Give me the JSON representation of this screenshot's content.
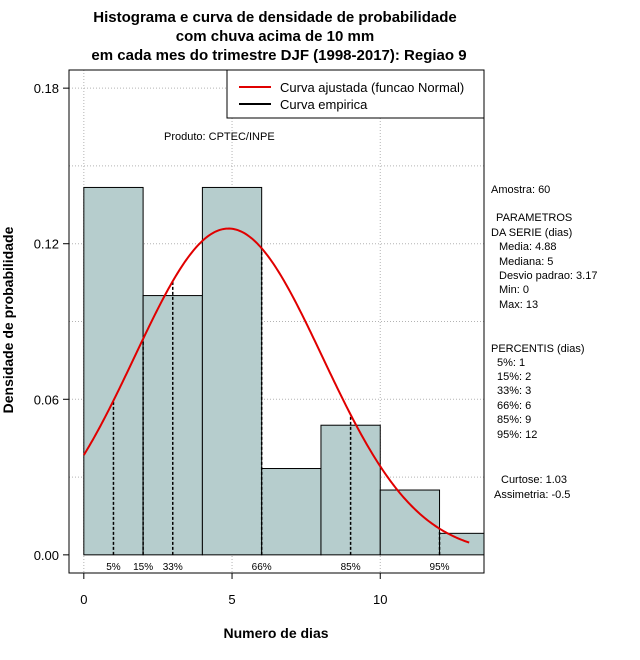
{
  "chart_data": {
    "type": "bar",
    "title": [
      "Histograma e curva de densidade de probabilidade",
      "com chuva acima de 10 mm",
      "em cada mes do trimestre DJF (1998-2017): Regiao 9"
    ],
    "xlabel": "Numero de dias",
    "ylabel": "Densidade de probabilidade",
    "xlim": [
      -0.5,
      13.5
    ],
    "ylim": [
      -0.007,
      0.187
    ],
    "x_ticks": [
      0,
      5,
      10
    ],
    "y_ticks": [
      0.0,
      0.06,
      0.12,
      0.18
    ],
    "x_tick_labels": [
      "0",
      "5",
      "10"
    ],
    "y_tick_labels": [
      "0.00",
      "0.06",
      "0.12",
      "0.18"
    ],
    "grid_x": [
      0,
      5,
      10
    ],
    "grid_y": [
      0.03,
      0.06,
      0.09,
      0.12,
      0.15,
      0.18
    ],
    "bins": [
      {
        "start": 0,
        "end": 2,
        "density": 0.1417
      },
      {
        "start": 2,
        "end": 4,
        "density": 0.1
      },
      {
        "start": 4,
        "end": 6,
        "density": 0.1417
      },
      {
        "start": 6,
        "end": 8,
        "density": 0.0333
      },
      {
        "start": 8,
        "end": 10,
        "density": 0.05
      },
      {
        "start": 10,
        "end": 12,
        "density": 0.025
      },
      {
        "start": 12,
        "end": 14,
        "density": 0.0083
      }
    ],
    "normal_curve": {
      "mean": 4.88,
      "sd": 3.17,
      "x_range": [
        0,
        13
      ],
      "color": "#e00000"
    },
    "bar_color": "#b6cdcd",
    "percentile_lines": [
      {
        "label": "5%",
        "x": 1
      },
      {
        "label": "15%",
        "x": 2
      },
      {
        "label": "33%",
        "x": 3
      },
      {
        "label": "66%",
        "x": 6
      },
      {
        "label": "85%",
        "x": 9
      },
      {
        "label": "95%",
        "x": 12
      }
    ],
    "legend": {
      "position": "top-right",
      "entries": [
        {
          "label": "Curva ajustada (funcao Normal)",
          "color": "#e00000"
        },
        {
          "label": "Curva empirica",
          "color": "#000000"
        }
      ]
    },
    "annotation": "Produto: CPTEC/INPE"
  },
  "stats": {
    "sample": "Amostra: 60",
    "params_title": [
      " PARAMETROS",
      "DA SERIE (dias)"
    ],
    "params": [
      "Media: 4.88",
      "Mediana: 5",
      "Desvio padrao: 3.17",
      "Min: 0",
      "Max: 13"
    ],
    "percentis_title": "PERCENTIS (dias)",
    "percentis": [
      "5%: 1",
      "15%: 2",
      "33%: 3",
      "66%: 6",
      "85%: 9",
      "95%: 12"
    ],
    "shape": [
      "Curtose: 1.03",
      "Assimetria: -0.5"
    ]
  }
}
